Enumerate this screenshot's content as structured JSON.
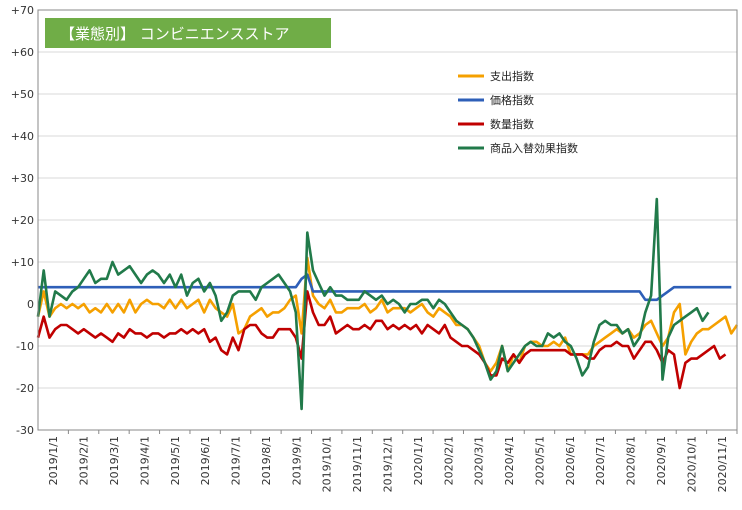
{
  "chart_data": {
    "type": "line",
    "title": "【業態別】 コンビニエンスストア",
    "title_bg": "#70ad47",
    "ylim": [
      -30,
      70
    ],
    "yticks": [
      -30,
      -20,
      -10,
      0,
      10,
      20,
      30,
      40,
      50,
      60,
      70
    ],
    "ytick_labels": [
      "-30",
      "-20",
      "-10",
      "0",
      "+10",
      "+20",
      "+30",
      "+40",
      "+50",
      "+60",
      "+70"
    ],
    "xtick_labels": [
      "2019/1/1",
      "2019/2/1",
      "2019/3/1",
      "2019/4/1",
      "2019/5/1",
      "2019/6/1",
      "2019/7/1",
      "2019/8/1",
      "2019/9/1",
      "2019/10/1",
      "2019/11/1",
      "2019/12/1",
      "2020/1/1",
      "2020/2/1",
      "2020/3/1",
      "2020/4/1",
      "2020/5/1",
      "2020/6/1",
      "2020/7/1",
      "2020/8/1",
      "2020/9/1",
      "2020/10/1",
      "2020/11/1"
    ],
    "grid": true,
    "legend_position": "upper-right",
    "series": [
      {
        "name": "支出指数",
        "color": "#f5a000",
        "values": [
          -3,
          3,
          -3,
          -1,
          0,
          -1,
          0,
          -1,
          0,
          -2,
          -1,
          -2,
          0,
          -2,
          0,
          -2,
          1,
          -2,
          0,
          1,
          0,
          0,
          -1,
          1,
          -1,
          1,
          -1,
          0,
          1,
          -2,
          1,
          -1,
          -2,
          -3,
          0,
          -7,
          -6,
          -3,
          -2,
          -1,
          -3,
          -2,
          -2,
          -1,
          1,
          2,
          -7,
          11,
          2,
          0,
          -1,
          1,
          -2,
          -2,
          -1,
          -1,
          -1,
          0,
          -2,
          -1,
          1,
          -2,
          -1,
          -1,
          -1,
          -2,
          -1,
          0,
          -2,
          -3,
          -1,
          -2,
          -3,
          -5,
          -5,
          -6,
          -8,
          -10,
          -14,
          -16,
          -14,
          -10,
          -16,
          -12,
          -14,
          -10,
          -9,
          -9,
          -10,
          -10,
          -9,
          -10,
          -8,
          -12,
          -12,
          -12,
          -12,
          -10,
          -9,
          -8,
          -7,
          -6,
          -7,
          -6,
          -8,
          -7,
          -5,
          -4,
          -7,
          -10,
          -8,
          -2,
          0,
          -12,
          -9,
          -7,
          -6,
          -6,
          -5,
          -4,
          -3,
          -7,
          -5
        ]
      },
      {
        "name": "価格指数",
        "color": "#2e5fb8",
        "values": [
          4,
          4,
          4,
          4,
          4,
          4,
          4,
          4,
          4,
          4,
          4,
          4,
          4,
          4,
          4,
          4,
          4,
          4,
          4,
          4,
          4,
          4,
          4,
          4,
          4,
          4,
          4,
          4,
          4,
          4,
          4,
          4,
          4,
          4,
          4,
          4,
          4,
          4,
          4,
          4,
          4,
          4,
          4,
          4,
          4,
          4,
          6,
          7,
          3,
          3,
          3,
          3,
          3,
          3,
          3,
          3,
          3,
          3,
          3,
          3,
          3,
          3,
          3,
          3,
          3,
          3,
          3,
          3,
          3,
          3,
          3,
          3,
          3,
          3,
          3,
          3,
          3,
          3,
          3,
          3,
          3,
          3,
          3,
          3,
          3,
          3,
          3,
          3,
          3,
          3,
          3,
          3,
          3,
          3,
          3,
          3,
          3,
          3,
          3,
          3,
          3,
          3,
          3,
          3,
          3,
          3,
          1,
          1,
          1,
          2,
          3,
          4,
          4,
          4,
          4,
          4,
          4,
          4,
          4,
          4,
          4,
          4
        ]
      },
      {
        "name": "数量指数",
        "color": "#c00000",
        "values": [
          -8,
          -3,
          -8,
          -6,
          -5,
          -5,
          -6,
          -7,
          -6,
          -7,
          -8,
          -7,
          -8,
          -9,
          -7,
          -8,
          -6,
          -7,
          -7,
          -8,
          -7,
          -7,
          -8,
          -7,
          -7,
          -6,
          -7,
          -6,
          -7,
          -6,
          -9,
          -8,
          -11,
          -12,
          -8,
          -11,
          -6,
          -5,
          -5,
          -7,
          -8,
          -8,
          -6,
          -6,
          -6,
          -8,
          -13,
          3,
          -2,
          -5,
          -5,
          -3,
          -7,
          -6,
          -5,
          -6,
          -6,
          -5,
          -6,
          -4,
          -4,
          -6,
          -5,
          -6,
          -5,
          -6,
          -5,
          -7,
          -5,
          -6,
          -7,
          -5,
          -8,
          -9,
          -10,
          -10,
          -11,
          -12,
          -14,
          -17,
          -17,
          -13,
          -14,
          -12,
          -14,
          -12,
          -11,
          -11,
          -11,
          -11,
          -11,
          -11,
          -11,
          -12,
          -12,
          -12,
          -13,
          -13,
          -11,
          -10,
          -10,
          -9,
          -10,
          -10,
          -13,
          -11,
          -9,
          -9,
          -11,
          -14,
          -11,
          -12,
          -20,
          -14,
          -13,
          -13,
          -12,
          -11,
          -10,
          -13,
          -12
        ]
      },
      {
        "name": "商品入替効果指数",
        "color": "#217a4a",
        "values": [
          -3,
          8,
          -3,
          3,
          2,
          1,
          3,
          4,
          6,
          8,
          5,
          6,
          6,
          10,
          7,
          8,
          9,
          7,
          5,
          7,
          8,
          7,
          5,
          7,
          4,
          7,
          2,
          5,
          6,
          3,
          5,
          2,
          -4,
          -2,
          2,
          3,
          3,
          3,
          1,
          4,
          5,
          6,
          7,
          5,
          3,
          -2,
          -25,
          17,
          8,
          5,
          2,
          4,
          2,
          2,
          1,
          1,
          1,
          3,
          2,
          1,
          2,
          0,
          1,
          0,
          -2,
          0,
          0,
          1,
          1,
          -1,
          1,
          0,
          -2,
          -4,
          -5,
          -6,
          -8,
          -11,
          -14,
          -18,
          -16,
          -10,
          -16,
          -14,
          -12,
          -10,
          -9,
          -10,
          -10,
          -7,
          -8,
          -7,
          -9,
          -10,
          -13,
          -17,
          -15,
          -9,
          -5,
          -4,
          -5,
          -5,
          -7,
          -6,
          -10,
          -8,
          -2,
          2,
          25,
          -18,
          -8,
          -5,
          -4,
          -3,
          -2,
          -1,
          -4,
          -2
        ]
      }
    ]
  }
}
